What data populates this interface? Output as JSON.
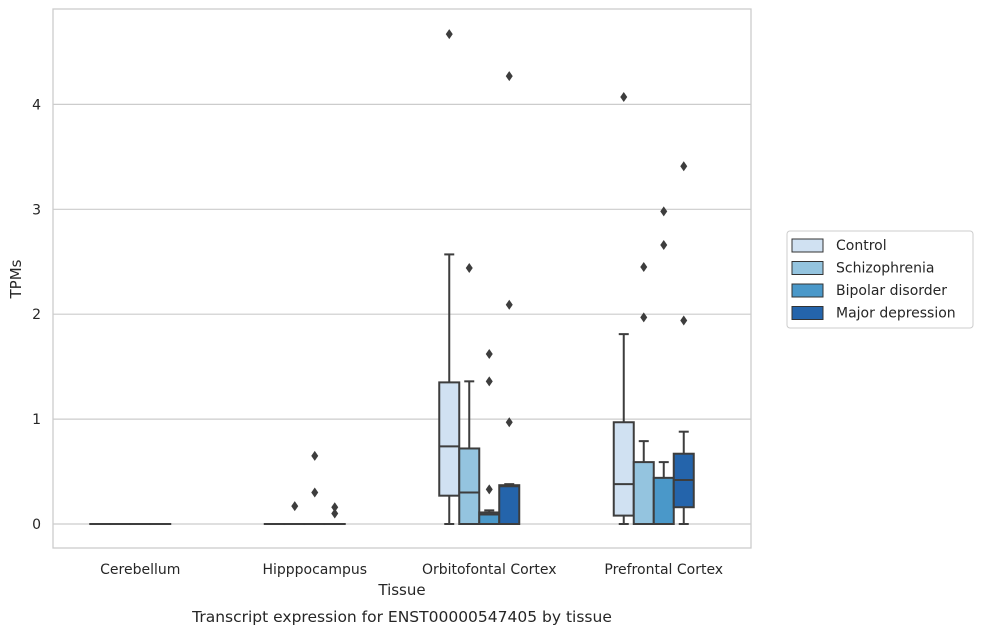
{
  "chart_data": {
    "type": "box",
    "xlabel": "Tissue",
    "ylabel": "TPMs",
    "caption": "Transcript expression for ENST00000547405 by tissue",
    "ylim": [
      -0.23,
      4.9
    ],
    "yticks": [
      0,
      1,
      2,
      3,
      4
    ],
    "grid": "horizontal",
    "legend_position": "right",
    "categories": [
      "Cerebellum",
      "Hipppocampus",
      "Orbitofontal Cortex",
      "Prefrontal Cortex"
    ],
    "series": [
      {
        "name": "Control",
        "color": "#d0e1f2",
        "boxes": [
          {
            "q1": 0,
            "median": 0,
            "q3": 0,
            "whisker_low": 0,
            "whisker_high": 0,
            "outliers": []
          },
          {
            "q1": 0,
            "median": 0,
            "q3": 0,
            "whisker_low": 0,
            "whisker_high": 0,
            "outliers": []
          },
          {
            "q1": 0.27,
            "median": 0.74,
            "q3": 1.35,
            "whisker_low": 0,
            "whisker_high": 2.57,
            "outliers": [
              4.67
            ]
          },
          {
            "q1": 0.08,
            "median": 0.38,
            "q3": 0.97,
            "whisker_low": 0,
            "whisker_high": 1.81,
            "outliers": [
              4.07
            ]
          }
        ]
      },
      {
        "name": "Schizophrenia",
        "color": "#94c4df",
        "boxes": [
          {
            "q1": 0,
            "median": 0,
            "q3": 0,
            "whisker_low": 0,
            "whisker_high": 0,
            "outliers": []
          },
          {
            "q1": 0,
            "median": 0,
            "q3": 0,
            "whisker_low": 0,
            "whisker_high": 0,
            "outliers": [
              0.17
            ]
          },
          {
            "q1": 0,
            "median": 0.3,
            "q3": 0.72,
            "whisker_low": 0,
            "whisker_high": 1.36,
            "outliers": [
              2.44
            ]
          },
          {
            "q1": 0,
            "median": 0,
            "q3": 0.59,
            "whisker_low": 0,
            "whisker_high": 0.79,
            "outliers": [
              1.97,
              2.45
            ]
          }
        ]
      },
      {
        "name": "Bipolar disorder",
        "color": "#4a98c9",
        "boxes": [
          {
            "q1": 0,
            "median": 0,
            "q3": 0,
            "whisker_low": 0,
            "whisker_high": 0,
            "outliers": []
          },
          {
            "q1": 0,
            "median": 0,
            "q3": 0,
            "whisker_low": 0,
            "whisker_high": 0,
            "outliers": [
              0.3,
              0.65
            ]
          },
          {
            "q1": 0,
            "median": 0.09,
            "q3": 0.11,
            "whisker_low": 0,
            "whisker_high": 0.13,
            "outliers": [
              0.33,
              1.36,
              1.62
            ]
          },
          {
            "q1": 0,
            "median": 0,
            "q3": 0.44,
            "whisker_low": 0,
            "whisker_high": 0.59,
            "outliers": [
              2.66,
              2.98
            ]
          }
        ]
      },
      {
        "name": "Major depression",
        "color": "#2464ab",
        "boxes": [
          {
            "q1": 0,
            "median": 0,
            "q3": 0,
            "whisker_low": 0,
            "whisker_high": 0,
            "outliers": []
          },
          {
            "q1": 0,
            "median": 0,
            "q3": 0,
            "whisker_low": 0,
            "whisker_high": 0,
            "outliers": [
              0.1,
              0.16
            ]
          },
          {
            "q1": 0,
            "median": 0.36,
            "q3": 0.37,
            "whisker_low": 0,
            "whisker_high": 0.38,
            "outliers": [
              0.97,
              2.09,
              4.27
            ]
          },
          {
            "q1": 0.16,
            "median": 0.42,
            "q3": 0.67,
            "whisker_low": 0,
            "whisker_high": 0.88,
            "outliers": [
              1.94,
              3.41
            ]
          }
        ]
      }
    ]
  }
}
